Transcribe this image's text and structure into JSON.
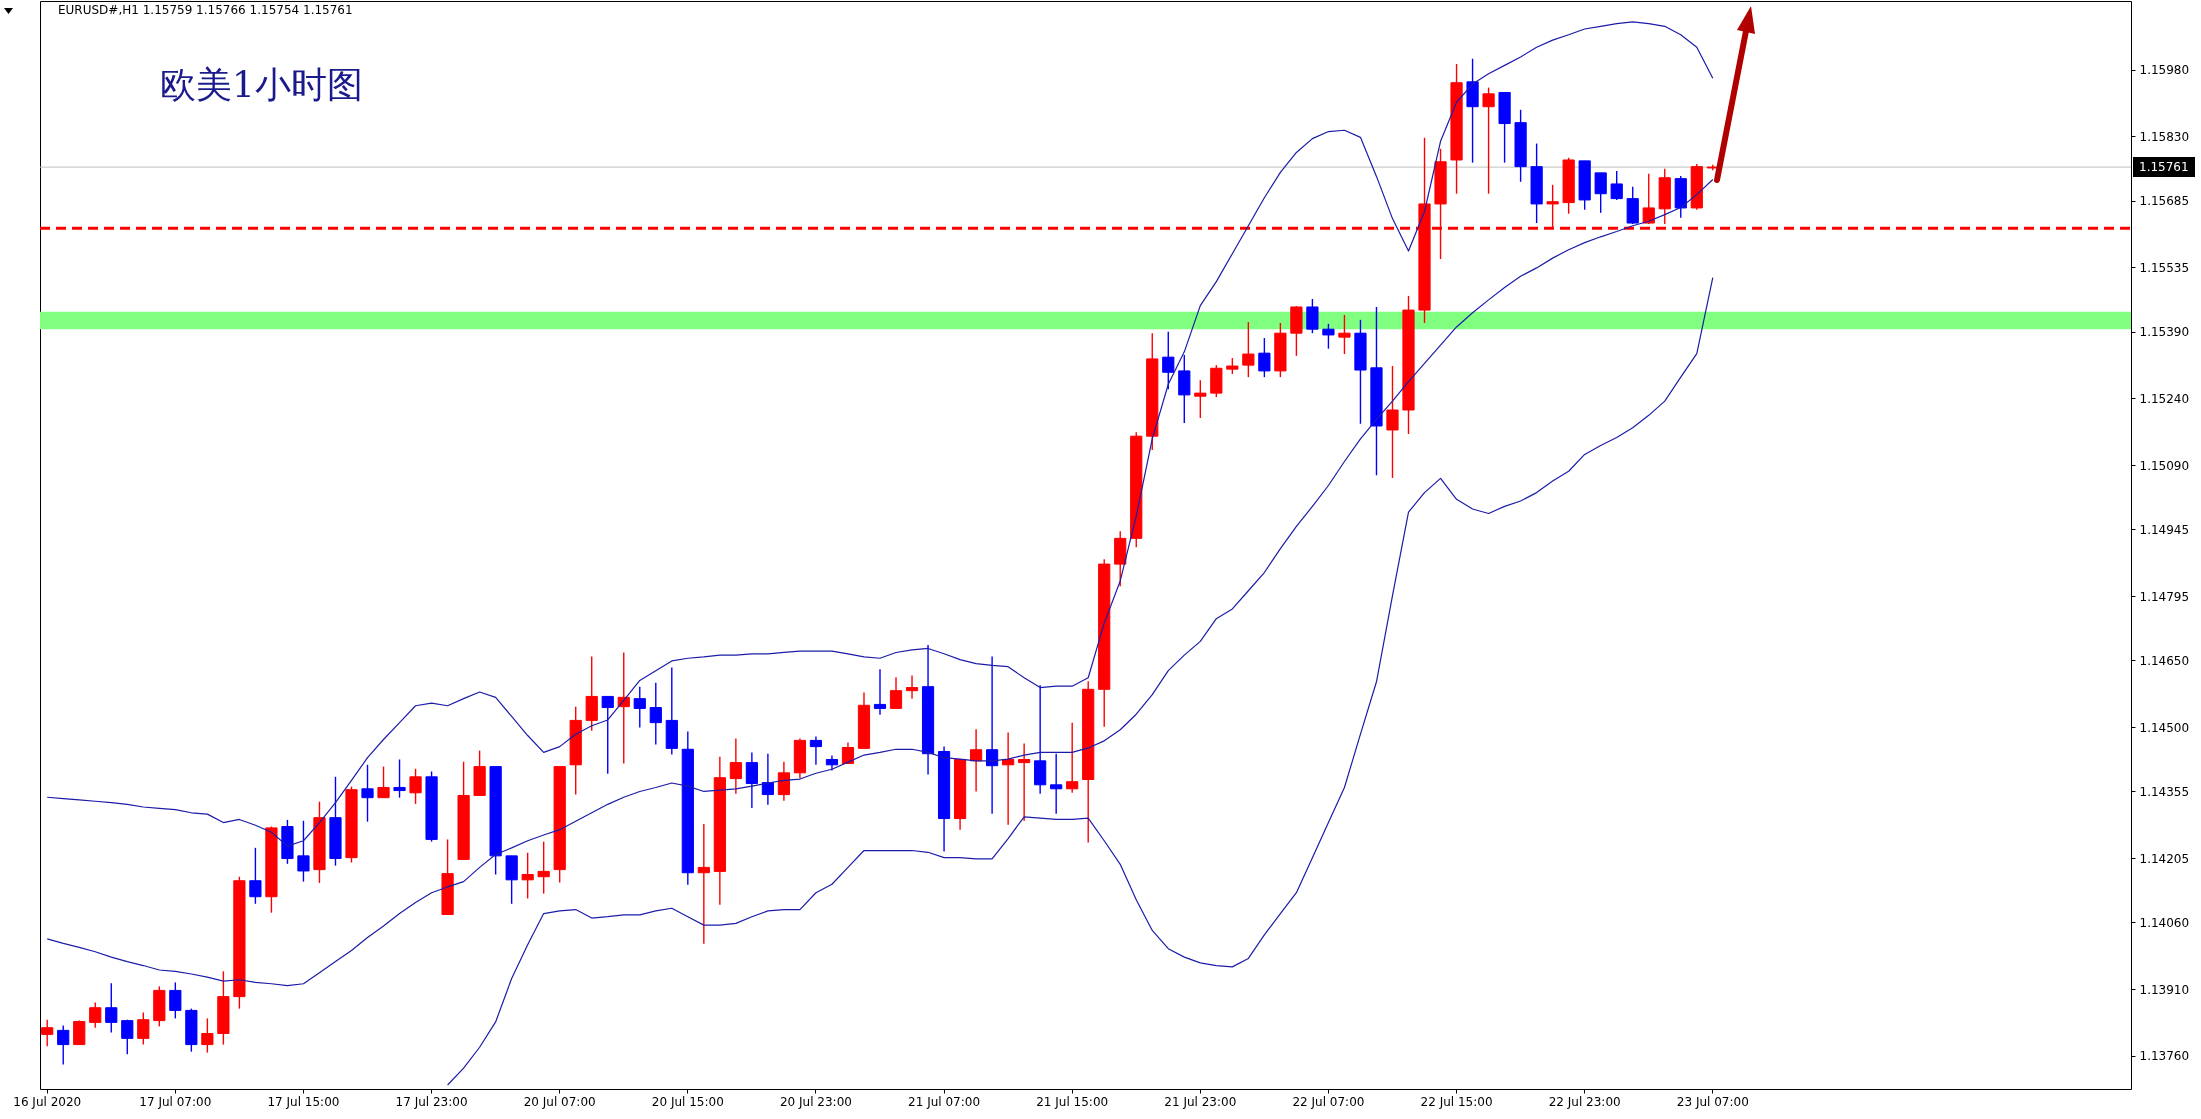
{
  "chart_data": {
    "type": "candlestick",
    "title": "欧美1小时图",
    "annotations": [
      "EURUSD#,H1  1.15759 1.15766 1.15754 1.15761"
    ],
    "categories": [
      "16 Jul 2020",
      null,
      null,
      null,
      null,
      null,
      null,
      null,
      "17 Jul 07:00",
      null,
      null,
      null,
      null,
      null,
      null,
      null,
      "17 Jul 15:00",
      null,
      null,
      null,
      null,
      null,
      null,
      null,
      "17 Jul 23:00",
      null,
      null,
      null,
      null,
      null,
      null,
      null,
      "20 Jul 07:00",
      null,
      null,
      null,
      null,
      null,
      null,
      null,
      "20 Jul 15:00",
      null,
      null,
      null,
      null,
      null,
      null,
      null,
      "20 Jul 23:00",
      null,
      null,
      null,
      null,
      null,
      null,
      null,
      "21 Jul 07:00",
      null,
      null,
      null,
      null,
      null,
      null,
      null,
      "21 Jul 15:00",
      null,
      null,
      null,
      null,
      null,
      null,
      null,
      "21 Jul 23:00",
      null,
      null,
      null,
      null,
      null,
      null,
      null,
      "22 Jul 07:00",
      null,
      null,
      null,
      null,
      null,
      null,
      null,
      "22 Jul 15:00",
      null,
      null,
      null,
      null,
      null,
      null,
      null,
      "22 Jul 23:00",
      null,
      null,
      null,
      null,
      null,
      null,
      null,
      "23 Jul 07:00"
    ],
    "ohlc": [
      [
        1.13808,
        1.13841,
        1.13781,
        1.13823
      ],
      [
        1.13817,
        1.13828,
        1.1374,
        1.13785
      ],
      [
        1.13785,
        1.13839,
        1.13785,
        1.13837
      ],
      [
        1.13835,
        1.1388,
        1.13823,
        1.13868
      ],
      [
        1.13868,
        1.13923,
        1.13812,
        1.13835
      ],
      [
        1.13839,
        1.13841,
        1.13763,
        1.13799
      ],
      [
        1.13799,
        1.13857,
        1.13785,
        1.13841
      ],
      [
        1.13839,
        1.13916,
        1.13826,
        1.13907
      ],
      [
        1.13907,
        1.13925,
        1.13844,
        1.13862
      ],
      [
        1.13862,
        1.13866,
        1.13769,
        1.13785
      ],
      [
        1.13785,
        1.13844,
        1.13767,
        1.1381
      ],
      [
        1.1381,
        1.1395,
        1.13785,
        1.13893
      ],
      [
        1.13893,
        1.14163,
        1.13866,
        1.14154
      ],
      [
        1.14154,
        1.14228,
        1.14102,
        1.14118
      ],
      [
        1.14118,
        1.14276,
        1.14082,
        1.14273
      ],
      [
        1.14276,
        1.14291,
        1.14192,
        1.14204
      ],
      [
        1.1421,
        1.14289,
        1.14152,
        1.14176
      ],
      [
        1.14179,
        1.14332,
        1.14149,
        1.14296
      ],
      [
        1.14296,
        1.14388,
        1.14188,
        1.14204
      ],
      [
        1.14206,
        1.14366,
        1.14195,
        1.14359
      ],
      [
        1.14361,
        1.14415,
        1.14287,
        1.14341
      ],
      [
        1.14341,
        1.14411,
        1.14341,
        1.14364
      ],
      [
        1.14364,
        1.14427,
        1.14341,
        1.14357
      ],
      [
        1.14352,
        1.14406,
        1.14327,
        1.14388
      ],
      [
        1.14388,
        1.144,
        1.14242,
        1.14247
      ],
      [
        1.14078,
        1.14247,
        1.14078,
        1.1417
      ],
      [
        1.14202,
        1.14422,
        1.14202,
        1.14346
      ],
      [
        1.14346,
        1.14447,
        1.14346,
        1.14411
      ],
      [
        1.14411,
        1.14411,
        1.14168,
        1.1421
      ],
      [
        1.1421,
        1.1421,
        1.14102,
        1.14156
      ],
      [
        1.14156,
        1.14217,
        1.14114,
        1.14168
      ],
      [
        1.14163,
        1.14242,
        1.14125,
        1.14175
      ],
      [
        1.14179,
        1.14411,
        1.1415,
        1.14411
      ],
      [
        1.14415,
        1.14546,
        1.14348,
        1.14515
      ],
      [
        1.14515,
        1.14659,
        1.14492,
        1.14569
      ],
      [
        1.14569,
        1.14569,
        1.14395,
        1.14544
      ],
      [
        1.14546,
        1.14668,
        1.14418,
        1.14567
      ],
      [
        1.14564,
        1.14591,
        1.14499,
        1.14542
      ],
      [
        1.14544,
        1.146,
        1.14461,
        1.1451
      ],
      [
        1.14515,
        1.14634,
        1.14438,
        1.14452
      ],
      [
        1.1445,
        1.1449,
        1.14145,
        1.14172
      ],
      [
        1.14172,
        1.14282,
        1.14012,
        1.14184
      ],
      [
        1.14175,
        1.14433,
        1.141,
        1.14386
      ],
      [
        1.14384,
        1.14474,
        1.1435,
        1.1442
      ],
      [
        1.1442,
        1.14443,
        1.14318,
        1.14373
      ],
      [
        1.14375,
        1.1444,
        1.14325,
        1.14348
      ],
      [
        1.14348,
        1.14422,
        1.14334,
        1.14397
      ],
      [
        1.14397,
        1.14474,
        1.14384,
        1.1447
      ],
      [
        1.1447,
        1.14479,
        1.14415,
        1.14456
      ],
      [
        1.14427,
        1.14436,
        1.14402,
        1.14415
      ],
      [
        1.14418,
        1.14465,
        1.14418,
        1.14454
      ],
      [
        1.14452,
        1.14578,
        1.14452,
        1.14549
      ],
      [
        1.14551,
        1.1463,
        1.14528,
        1.14542
      ],
      [
        1.14542,
        1.14612,
        1.14542,
        1.14582
      ],
      [
        1.14582,
        1.14616,
        1.14564,
        1.14589
      ],
      [
        1.14591,
        1.14685,
        1.14393,
        1.1444
      ],
      [
        1.14445,
        1.14456,
        1.1422,
        1.14294
      ],
      [
        1.14294,
        1.14427,
        1.14269,
        1.14427
      ],
      [
        1.14424,
        1.14495,
        1.14355,
        1.14449
      ],
      [
        1.14449,
        1.14659,
        1.14305,
        1.14413
      ],
      [
        1.14415,
        1.14488,
        1.1428,
        1.14427
      ],
      [
        1.1442,
        1.14463,
        1.14289,
        1.14427
      ],
      [
        1.14424,
        1.14594,
        1.1435,
        1.1437
      ],
      [
        1.1437,
        1.1444,
        1.14305,
        1.14361
      ],
      [
        1.14361,
        1.1451,
        1.14352,
        1.14377
      ],
      [
        1.14382,
        1.14603,
        1.1424,
        1.14585
      ],
      [
        1.14585,
        1.14878,
        1.14501,
        1.14867
      ],
      [
        1.14867,
        1.14941,
        1.14817,
        1.14925
      ],
      [
        1.14925,
        1.15164,
        1.14905,
        1.15155
      ],
      [
        1.15155,
        1.15387,
        1.15124,
        1.15329
      ],
      [
        1.15333,
        1.1539,
        1.15261,
        1.15299
      ],
      [
        1.15302,
        1.15338,
        1.15185,
        1.15248
      ],
      [
        1.15245,
        1.15281,
        1.15196,
        1.15252
      ],
      [
        1.15252,
        1.15315,
        1.15243,
        1.15308
      ],
      [
        1.15306,
        1.15331,
        1.15295,
        1.15313
      ],
      [
        1.15315,
        1.15412,
        1.15288,
        1.1534
      ],
      [
        1.15342,
        1.15376,
        1.15288,
        1.15302
      ],
      [
        1.15302,
        1.1541,
        1.15288,
        1.15387
      ],
      [
        1.15387,
        1.15448,
        1.15336,
        1.15446
      ],
      [
        1.15446,
        1.15464,
        1.15387,
        1.15396
      ],
      [
        1.15396,
        1.15408,
        1.15352,
        1.15383
      ],
      [
        1.15378,
        1.15428,
        1.1534,
        1.15387
      ],
      [
        1.15387,
        1.15417,
        1.15183,
        1.15304
      ],
      [
        1.15309,
        1.15446,
        1.15067,
        1.15178
      ],
      [
        1.15169,
        1.15313,
        1.15061,
        1.15214
      ],
      [
        1.15214,
        1.15471,
        1.1516,
        1.15439
      ],
      [
        1.15439,
        1.15827,
        1.1541,
        1.15678
      ],
      [
        1.15678,
        1.15802,
        1.15554,
        1.15773
      ],
      [
        1.15777,
        1.15993,
        1.15701,
        1.15951
      ],
      [
        1.15953,
        1.16005,
        1.15771,
        1.15897
      ],
      [
        1.15897,
        1.1594,
        1.15701,
        1.15926
      ],
      [
        1.15929,
        1.15929,
        1.15771,
        1.15859
      ],
      [
        1.15861,
        1.1589,
        1.15728,
        1.15762
      ],
      [
        1.15762,
        1.15814,
        1.15635,
        1.15678
      ],
      [
        1.15678,
        1.15721,
        1.15624,
        1.15683
      ],
      [
        1.15681,
        1.15782,
        1.15656,
        1.15777
      ],
      [
        1.15775,
        1.15775,
        1.15665,
        1.15687
      ],
      [
        1.15748,
        1.15748,
        1.15658,
        1.15701
      ],
      [
        1.15723,
        1.15752,
        1.15687,
        1.1569
      ],
      [
        1.1569,
        1.15717,
        1.15633,
        1.15635
      ],
      [
        1.15635,
        1.15746,
        1.15633,
        1.15669
      ],
      [
        1.15667,
        1.15757,
        1.15633,
        1.15737
      ],
      [
        1.15735,
        1.15741,
        1.15647,
        1.15669
      ],
      [
        1.15669,
        1.15768,
        1.15665,
        1.15762
      ],
      [
        1.15759,
        1.15766,
        1.15754,
        1.15761
      ]
    ],
    "colors": [
      "#ff0000",
      "#0000ff",
      "#ff0000",
      "#ff0000",
      "#0000ff",
      "#0000ff",
      "#ff0000",
      "#ff0000",
      "#0000ff",
      "#0000ff",
      "#ff0000",
      "#ff0000",
      "#ff0000",
      "#0000ff",
      "#ff0000",
      "#0000ff",
      "#0000ff",
      "#ff0000",
      "#0000ff",
      "#ff0000",
      "#0000ff",
      "#ff0000",
      "#0000ff",
      "#ff0000",
      "#0000ff",
      "#ff0000",
      "#ff0000",
      "#ff0000",
      "#0000ff",
      "#0000ff",
      "#ff0000",
      "#ff0000",
      "#ff0000",
      "#ff0000",
      "#ff0000",
      "#0000ff",
      "#ff0000",
      "#0000ff",
      "#0000ff",
      "#0000ff",
      "#0000ff",
      "#ff0000",
      "#ff0000",
      "#ff0000",
      "#0000ff",
      "#0000ff",
      "#ff0000",
      "#ff0000",
      "#0000ff",
      "#0000ff",
      "#ff0000",
      "#ff0000",
      "#0000ff",
      "#ff0000",
      "#ff0000",
      "#0000ff",
      "#0000ff",
      "#ff0000",
      "#ff0000",
      "#0000ff",
      "#ff0000",
      "#ff0000",
      "#0000ff",
      "#0000ff",
      "#ff0000",
      "#ff0000",
      "#ff0000",
      "#ff0000",
      "#ff0000",
      "#ff0000",
      "#0000ff",
      "#0000ff",
      "#ff0000",
      "#ff0000",
      "#ff0000",
      "#ff0000",
      "#0000ff",
      "#ff0000",
      "#ff0000",
      "#0000ff",
      "#0000ff",
      "#ff0000",
      "#0000ff",
      "#0000ff",
      "#ff0000",
      "#ff0000",
      "#ff0000",
      "#ff0000",
      "#ff0000",
      "#0000ff",
      "#ff0000",
      "#0000ff",
      "#0000ff",
      "#0000ff",
      "#ff0000",
      "#ff0000",
      "#0000ff",
      "#0000ff",
      "#0000ff",
      "#0000ff",
      "#ff0000",
      "#ff0000",
      "#0000ff",
      "#ff0000",
      "#ff0000"
    ],
    "series": [
      {
        "type": "line",
        "color": "#1c1ca8",
        "values": [
          1.14342,
          1.14339,
          1.14336,
          1.14333,
          1.1433,
          1.14326,
          1.1432,
          1.14317,
          1.14314,
          1.14307,
          1.14304,
          1.14285,
          1.14292,
          1.14279,
          1.14263,
          1.14232,
          1.14244,
          1.14285,
          1.1433,
          1.1438,
          1.14431,
          1.14472,
          1.1451,
          1.14548,
          1.14554,
          1.14548,
          1.14564,
          1.14579,
          1.14567,
          1.14524,
          1.14481,
          1.14443,
          1.14456,
          1.14484,
          1.14503,
          1.14516,
          1.1456,
          1.14605,
          1.14627,
          1.14649,
          1.14655,
          1.14658,
          1.14662,
          1.14662,
          1.14665,
          1.14665,
          1.14668,
          1.14671,
          1.14671,
          1.14671,
          1.14665,
          1.14658,
          1.14655,
          1.14668,
          1.14674,
          1.14677,
          1.14665,
          1.14652,
          1.14643,
          1.14639,
          1.14636,
          1.14611,
          1.14589,
          1.14592,
          1.14592,
          1.14611,
          1.14734,
          1.14829,
          1.14975,
          1.15149,
          1.15272,
          1.15345,
          1.15449,
          1.15503,
          1.15566,
          1.15629,
          1.15692,
          1.15749,
          1.15794,
          1.15825,
          1.15841,
          1.15844,
          1.15828,
          1.1574,
          1.15645,
          1.15572,
          1.15661,
          1.15819,
          1.15907,
          1.15948,
          1.15971,
          1.1599,
          1.16009,
          1.16031,
          1.16047,
          1.16059,
          1.16072,
          1.16078,
          1.16084,
          1.16088,
          1.16084,
          1.16078,
          1.16059,
          1.16031,
          1.15961
        ]
      },
      {
        "type": "line",
        "color": "#1c1ca8",
        "values": [
          1.14023,
          1.14013,
          1.14004,
          1.13994,
          1.13982,
          1.13972,
          1.13963,
          1.13953,
          1.1395,
          1.13944,
          1.13937,
          1.13928,
          1.13931,
          1.13925,
          1.13922,
          1.13918,
          1.13922,
          1.13947,
          1.13972,
          1.13997,
          1.14026,
          1.14052,
          1.1408,
          1.14105,
          1.14127,
          1.1414,
          1.14152,
          1.14184,
          1.14213,
          1.14228,
          1.14244,
          1.14257,
          1.14269,
          1.14288,
          1.14307,
          1.14326,
          1.14342,
          1.14355,
          1.14364,
          1.14374,
          1.14367,
          1.14355,
          1.14358,
          1.14361,
          1.14367,
          1.14374,
          1.1438,
          1.14383,
          1.14396,
          1.14405,
          1.14421,
          1.14437,
          1.14443,
          1.1445,
          1.1445,
          1.14443,
          1.14431,
          1.14428,
          1.14424,
          1.14424,
          1.14428,
          1.14437,
          1.14443,
          1.14443,
          1.14443,
          1.14453,
          1.14469,
          1.14494,
          1.14529,
          1.14573,
          1.14627,
          1.14662,
          1.14693,
          1.14744,
          1.14766,
          1.14807,
          1.14848,
          1.14902,
          1.14952,
          1.14997,
          1.15044,
          1.15098,
          1.15149,
          1.15193,
          1.15234,
          1.15278,
          1.15319,
          1.1536,
          1.15401,
          1.15433,
          1.15462,
          1.1549,
          1.15515,
          1.15534,
          1.15556,
          1.15575,
          1.15591,
          1.15604,
          1.15616,
          1.15629,
          1.15639,
          1.15654,
          1.1567,
          1.15699,
          1.15733
        ]
      },
      {
        "type": "line",
        "color": "#1c1ca8",
        "values": [
          null,
          null,
          null,
          null,
          null,
          null,
          null,
          null,
          null,
          null,
          null,
          null,
          null,
          null,
          null,
          null,
          null,
          null,
          null,
          null,
          null,
          null,
          null,
          null,
          null,
          1.13694,
          1.13732,
          1.13779,
          1.13836,
          1.13934,
          1.1401,
          1.1408,
          1.14086,
          1.14089,
          1.1407,
          1.14073,
          1.14077,
          1.14077,
          1.14086,
          1.14092,
          1.14073,
          1.14054,
          1.14054,
          1.14058,
          1.14073,
          1.14086,
          1.14089,
          1.14089,
          1.14127,
          1.14146,
          1.14184,
          1.14222,
          1.14222,
          1.14222,
          1.14222,
          1.14218,
          1.14206,
          1.14206,
          1.14203,
          1.14203,
          1.14249,
          1.14298,
          1.14295,
          1.14292,
          1.14292,
          1.14295,
          1.14244,
          1.14191,
          1.14111,
          1.14042,
          1.14001,
          1.13982,
          1.13969,
          1.13963,
          1.1396,
          1.13979,
          1.14032,
          1.1408,
          1.14127,
          1.14206,
          1.14285,
          1.14364,
          1.14484,
          1.14602,
          1.14796,
          1.14984,
          1.15028,
          1.1506,
          1.15013,
          1.14991,
          1.14981,
          1.14997,
          1.15009,
          1.15028,
          1.15054,
          1.15076,
          1.15114,
          1.15134,
          1.15152,
          1.15174,
          1.15202,
          1.15234,
          1.15288,
          1.15341,
          1.15512
        ]
      }
    ],
    "ylim": [
      1.13685,
      1.16135
    ],
    "yticks": [
      {
        "value": 1.1376,
        "label": "1.13760"
      },
      {
        "value": 1.1391,
        "label": "1.13910"
      },
      {
        "value": 1.1406,
        "label": "1.14060"
      },
      1.14205,
      1.14355,
      {
        "value": 1.145,
        "label": "1.14500"
      },
      {
        "value": 1.1465,
        "label": "1.14650"
      },
      1.14795,
      1.14945,
      {
        "value": 1.1509,
        "label": "1.15090"
      },
      {
        "value": 1.1524,
        "label": "1.15240"
      },
      {
        "value": 1.1539,
        "label": "1.15390"
      },
      1.15535,
      1.15685,
      {
        "value": 1.1583,
        "label": "1.15830"
      },
      {
        "value": 1.1598,
        "label": "1.15980"
      }
    ],
    "ref_lines": [
      {
        "axis": "y",
        "value": 1.15761,
        "label": "1.15761",
        "color": "#c0c0c0",
        "line_style": "solid"
      },
      {
        "axis": "y",
        "value": 1.15623,
        "color": "#ff0000",
        "line_style": "dashed"
      }
    ],
    "bands": [
      {
        "axis": "y",
        "from": 1.15396,
        "to": 1.15435,
        "color": "#80ff80"
      }
    ]
  }
}
